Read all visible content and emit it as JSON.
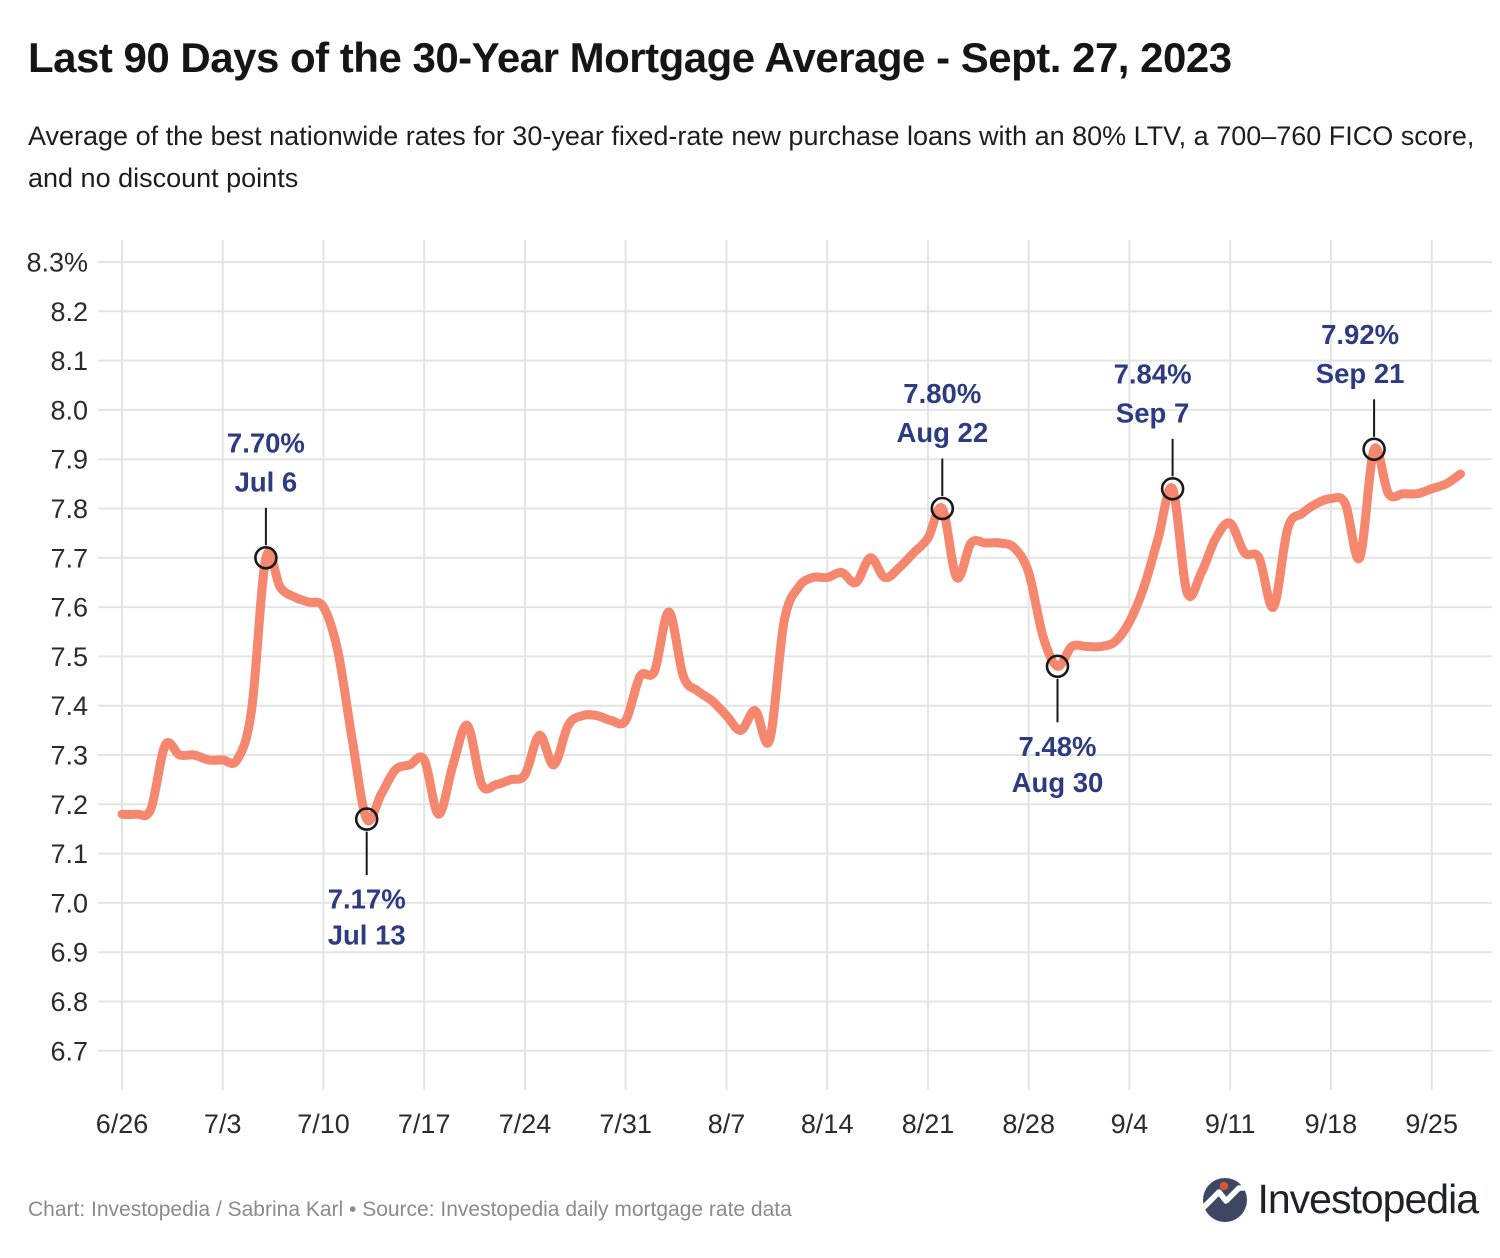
{
  "header": {
    "title": "Last 90 Days of the 30-Year Mortgage Average - Sept. 27, 2023",
    "subtitle": "Average of the best nationwide rates for 30-year fixed-rate new purchase loans with an 80% LTV, a 700–760 FICO score, and no discount points"
  },
  "footer": {
    "credit": "Chart: Investopedia / Sabrina Karl • Source: Investopedia daily mortgage rate data",
    "logo_text": "Investopedia"
  },
  "colors": {
    "line": "#f4876d",
    "annotation_text": "#2d3c80",
    "grid": "#e4e4e4",
    "tick_text": "#2b2b2b",
    "marker_stroke": "#1a1a1a",
    "logo_circle": "#3d4763",
    "logo_dot": "#d9542f"
  },
  "chart_data": {
    "type": "line",
    "title": "Last 90 Days of the 30-Year Mortgage Average - Sept. 27, 2023",
    "series_name": "30-year fixed mortgage rate (%)",
    "grid": true,
    "legend_position": "none",
    "ylim": [
      6.7,
      8.3
    ],
    "dates": [
      "6/26",
      "6/27",
      "6/28",
      "6/29",
      "6/30",
      "7/1",
      "7/2",
      "7/3",
      "7/4",
      "7/5",
      "7/6",
      "7/7",
      "7/8",
      "7/9",
      "7/10",
      "7/11",
      "7/12",
      "7/13",
      "7/14",
      "7/15",
      "7/16",
      "7/17",
      "7/18",
      "7/19",
      "7/20",
      "7/21",
      "7/22",
      "7/23",
      "7/24",
      "7/25",
      "7/26",
      "7/27",
      "7/28",
      "7/29",
      "7/30",
      "7/31",
      "8/1",
      "8/2",
      "8/3",
      "8/4",
      "8/5",
      "8/6",
      "8/7",
      "8/8",
      "8/9",
      "8/10",
      "8/11",
      "8/12",
      "8/13",
      "8/14",
      "8/15",
      "8/16",
      "8/17",
      "8/18",
      "8/19",
      "8/20",
      "8/21",
      "8/22",
      "8/23",
      "8/24",
      "8/25",
      "8/26",
      "8/27",
      "8/28",
      "8/29",
      "8/30",
      "8/31",
      "9/1",
      "9/2",
      "9/3",
      "9/4",
      "9/5",
      "9/6",
      "9/7",
      "9/8",
      "9/9",
      "9/10",
      "9/11",
      "9/12",
      "9/13",
      "9/14",
      "9/15",
      "9/16",
      "9/17",
      "9/18",
      "9/19",
      "9/20",
      "9/21",
      "9/22",
      "9/23",
      "9/24",
      "9/25",
      "9/26",
      "9/27"
    ],
    "values": [
      7.18,
      7.18,
      7.19,
      7.32,
      7.3,
      7.3,
      7.29,
      7.29,
      7.29,
      7.39,
      7.7,
      7.64,
      7.62,
      7.61,
      7.6,
      7.51,
      7.33,
      7.17,
      7.22,
      7.27,
      7.28,
      7.29,
      7.18,
      7.28,
      7.36,
      7.24,
      7.24,
      7.25,
      7.26,
      7.34,
      7.28,
      7.36,
      7.38,
      7.38,
      7.37,
      7.37,
      7.46,
      7.47,
      7.59,
      7.46,
      7.43,
      7.41,
      7.38,
      7.35,
      7.39,
      7.33,
      7.57,
      7.64,
      7.66,
      7.66,
      7.67,
      7.65,
      7.7,
      7.66,
      7.68,
      7.71,
      7.74,
      7.8,
      7.66,
      7.73,
      7.73,
      7.73,
      7.72,
      7.67,
      7.54,
      7.48,
      7.52,
      7.52,
      7.52,
      7.53,
      7.57,
      7.64,
      7.74,
      7.84,
      7.63,
      7.67,
      7.74,
      7.77,
      7.71,
      7.7,
      7.6,
      7.76,
      7.79,
      7.81,
      7.82,
      7.81,
      7.7,
      7.92,
      7.83,
      7.83,
      7.83,
      7.84,
      7.85,
      7.87
    ],
    "x_tick_labels": [
      "6/26",
      "7/3",
      "7/10",
      "7/17",
      "7/24",
      "7/31",
      "8/7",
      "8/14",
      "8/21",
      "8/28",
      "9/4",
      "9/11",
      "9/18",
      "9/25"
    ],
    "y_ticks": [
      8.3,
      8.2,
      8.1,
      8.0,
      7.9,
      7.8,
      7.7,
      7.6,
      7.5,
      7.4,
      7.3,
      7.2,
      7.1,
      7.0,
      6.9,
      6.8,
      6.7
    ],
    "y_tick_labels": [
      "8.3%",
      "8.2",
      "8.1",
      "8.0",
      "7.9",
      "7.8",
      "7.7",
      "7.6",
      "7.5",
      "7.4",
      "7.3",
      "7.2",
      "7.1",
      "7.0",
      "6.9",
      "6.8",
      "6.7"
    ],
    "annotations": [
      {
        "rate": "7.70%",
        "date_label": "Jul 6",
        "date": "7/6",
        "value": 7.7,
        "position": "above",
        "dx": 0
      },
      {
        "rate": "7.17%",
        "date_label": "Jul 13",
        "date": "7/13",
        "value": 7.17,
        "position": "below",
        "dx": 0
      },
      {
        "rate": "7.80%",
        "date_label": "Aug 22",
        "date": "8/22",
        "value": 7.8,
        "position": "above",
        "dx": 0
      },
      {
        "rate": "7.48%",
        "date_label": "Aug 30",
        "date": "8/30",
        "value": 7.48,
        "position": "below",
        "dx": 0
      },
      {
        "rate": "7.84%",
        "date_label": "Sep 7",
        "date": "9/7",
        "value": 7.84,
        "position": "above",
        "dx": -20
      },
      {
        "rate": "7.92%",
        "date_label": "Sep 21",
        "date": "9/21",
        "value": 7.92,
        "position": "above",
        "dx": -14
      }
    ]
  }
}
